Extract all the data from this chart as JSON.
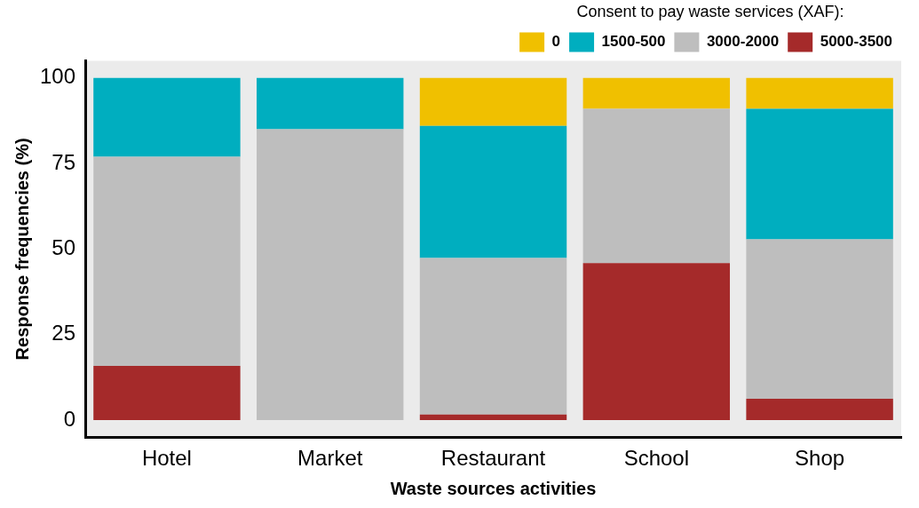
{
  "chart_data": {
    "type": "bar",
    "stacked": true,
    "legend_title": "Consent to pay waste services (XAF):",
    "xlabel": "Waste sources activities",
    "ylabel": "Response frequencies (%)",
    "categories": [
      "Hotel",
      "Market",
      "Restaurant",
      "School",
      "Shop"
    ],
    "series": [
      {
        "name": "5000-3500",
        "color": "#a52a2a",
        "values": [
          15.8,
          0,
          1.6,
          45.9,
          6.2
        ]
      },
      {
        "name": "3000-2000",
        "color": "#bebebe",
        "values": [
          61.2,
          85,
          45.8,
          45.1,
          46.6
        ]
      },
      {
        "name": "1500-500",
        "color": "#00aebf",
        "values": [
          23,
          15,
          38.6,
          0,
          38.2
        ]
      },
      {
        "name": "0",
        "color": "#f0c000",
        "values": [
          0,
          0,
          14,
          9,
          9
        ]
      }
    ],
    "ylim": [
      -5,
      105
    ],
    "yticks": [
      0,
      25,
      50,
      75,
      100
    ],
    "grid": false,
    "legend": "top"
  }
}
